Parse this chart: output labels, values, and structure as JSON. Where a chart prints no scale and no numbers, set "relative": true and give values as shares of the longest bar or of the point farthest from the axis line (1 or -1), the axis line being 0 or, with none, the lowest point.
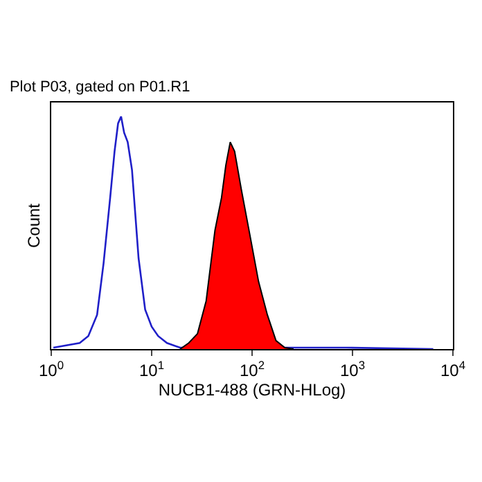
{
  "chart_data": {
    "type": "line",
    "title": "Plot P03, gated on P01.R1",
    "xlabel": "NUCB1-488 (GRN-HLog)",
    "ylabel": "Count",
    "relative": true,
    "log": "x",
    "xlim": [
      1,
      10000
    ],
    "xticks": [
      {
        "value": 1,
        "label": "10$^{0}$"
      },
      {
        "value": 10,
        "label": "10$^{1}$"
      },
      {
        "value": 100,
        "label": "10$^{2}$"
      },
      {
        "value": 1000,
        "label": "10$^{3}$"
      },
      {
        "value": 10000,
        "label": "10$^{4}$"
      }
    ],
    "series": [
      {
        "color": "#1f1fc8",
        "x": [
          1.05,
          1.92,
          2.34,
          2.86,
          3.32,
          3.86,
          4.27,
          4.63,
          4.96,
          5.32,
          5.77,
          6.37,
          7.41,
          8.61,
          10,
          11.6,
          14.2,
          19.2,
          861,
          6370
        ],
        "values": [
          0.006,
          0.026,
          0.056,
          0.147,
          0.369,
          0.65,
          0.85,
          0.97,
          1.0,
          0.93,
          0.89,
          0.77,
          0.39,
          0.17,
          0.096,
          0.056,
          0.026,
          0.006,
          0.006,
          0
        ]
      },
      {
        "type": "area",
        "color": "#ff0000",
        "x": [
          19.2,
          23.4,
          28.6,
          34.9,
          42.7,
          49.6,
          54.8,
          60.6,
          67.0,
          77.8,
          95.1,
          116,
          142,
          173,
          212,
          259
        ],
        "values": [
          0,
          0.026,
          0.066,
          0.207,
          0.51,
          0.65,
          0.79,
          0.89,
          0.85,
          0.69,
          0.49,
          0.29,
          0.147,
          0.036,
          0.006,
          0
        ]
      }
    ]
  }
}
